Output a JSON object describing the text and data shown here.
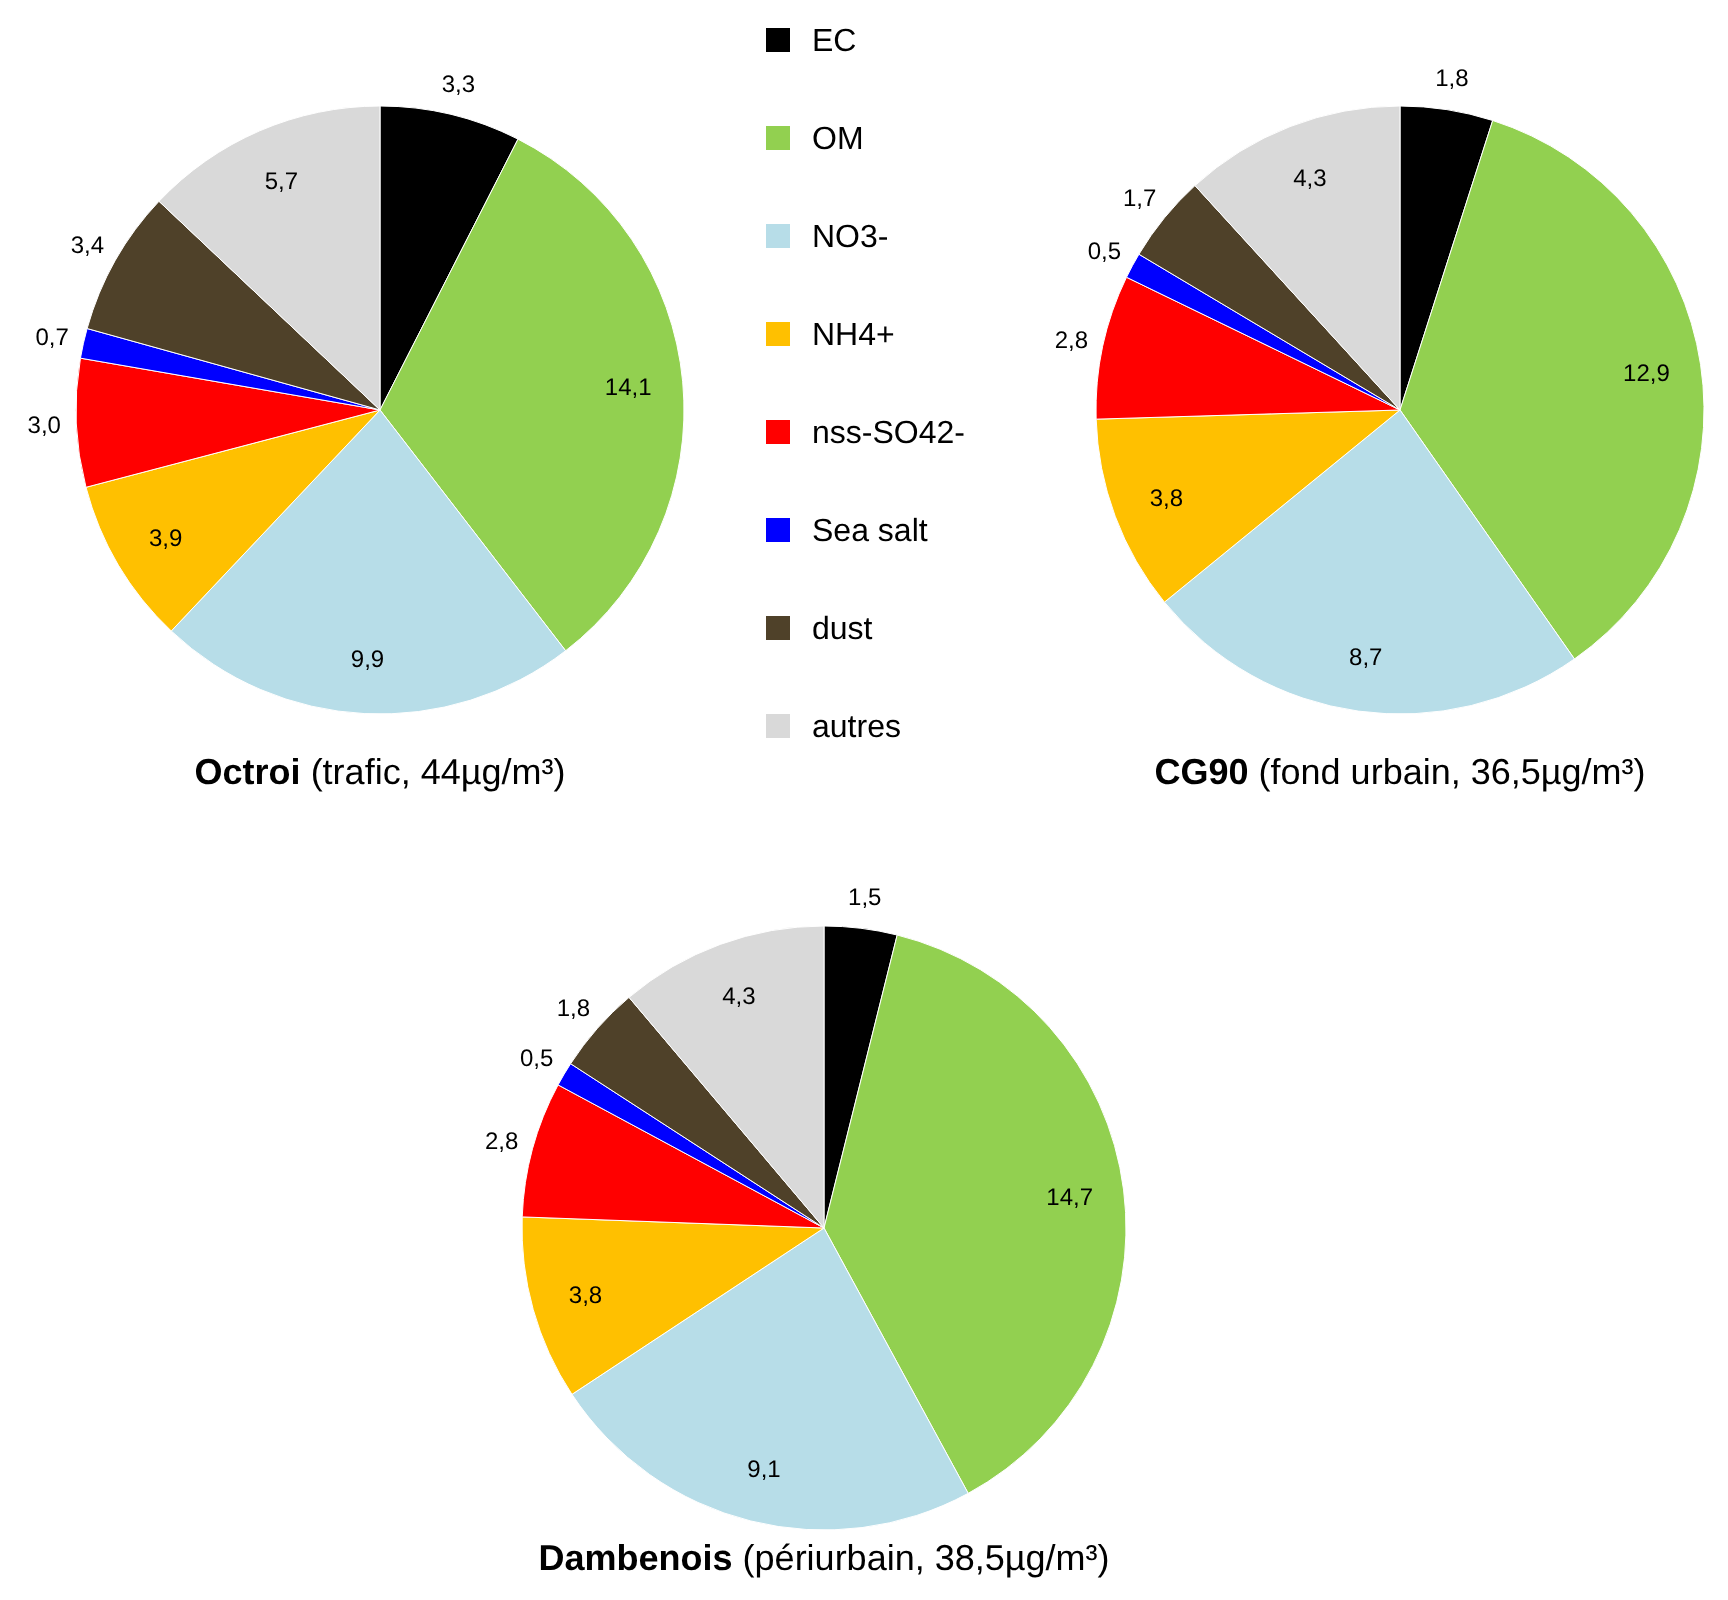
{
  "chart_data": [
    {
      "type": "pie",
      "title": "Octroi",
      "subtitle": "(trafic, 44µg/m³)",
      "legend": "right",
      "categories": [
        "EC",
        "OM",
        "NO3-",
        "NH4+",
        "nss-SO42-",
        "Sea salt",
        "dust",
        "autres"
      ],
      "values": [
        3.3,
        14.1,
        9.9,
        3.9,
        3.0,
        0.7,
        3.4,
        5.7
      ],
      "value_labels": [
        "3,3",
        "14,1",
        "9,9",
        "3,9",
        "3,0",
        "0,7",
        "3,4",
        "5,7"
      ],
      "colors": [
        "#000000",
        "#92d050",
        "#b7dde8",
        "#ffc000",
        "#ff0000",
        "#0000ff",
        "#4f4129",
        "#d9d9d9"
      ]
    },
    {
      "type": "pie",
      "title": "CG90",
      "subtitle": "(fond urbain, 36,5µg/m³)",
      "categories": [
        null,
        null,
        null,
        null,
        null,
        null,
        null,
        null
      ],
      "values": [
        1.8,
        12.9,
        8.7,
        3.8,
        2.8,
        0.5,
        1.7,
        4.3
      ],
      "value_labels": [
        "1,8",
        "12,9",
        "8,7",
        "3,8",
        "2,8",
        "0,5",
        "1,7",
        "4,3"
      ],
      "colors": [
        "#000000",
        "#92d050",
        "#b7dde8",
        "#ffc000",
        "#ff0000",
        "#0000ff",
        "#4f4129",
        "#d9d9d9"
      ]
    },
    {
      "type": "pie",
      "title": "Dambenois",
      "subtitle": "(périurbain, 38,5µg/m³)",
      "categories": [
        null,
        null,
        null,
        null,
        null,
        null,
        null,
        null
      ],
      "values": [
        1.5,
        14.7,
        9.1,
        3.8,
        2.8,
        0.5,
        1.8,
        4.3
      ],
      "value_labels": [
        "1,5",
        "14,7",
        "9,1",
        "3,8",
        "2,8",
        "0,5",
        "1,8",
        "4,3"
      ],
      "colors": [
        "#000000",
        "#92d050",
        "#b7dde8",
        "#ffc000",
        "#ff0000",
        "#0000ff",
        "#4f4129",
        "#d9d9d9"
      ]
    }
  ]
}
